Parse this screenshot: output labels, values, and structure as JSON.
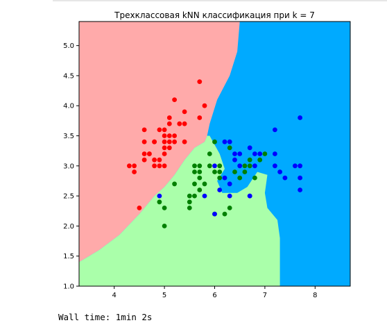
{
  "output": {
    "wall_time": "Wall time: 1min 2s"
  },
  "chart_data": {
    "type": "scatter",
    "title": "Трехклассовая kNN классификация при k = 7",
    "xlabel": "",
    "ylabel": "",
    "xlim": [
      3.3,
      8.7
    ],
    "ylim": [
      1.0,
      5.4
    ],
    "x_ticks": [
      "4",
      "5",
      "6",
      "7",
      "8"
    ],
    "y_ticks": [
      "1.0",
      "1.5",
      "2.0",
      "2.5",
      "3.0",
      "3.5",
      "4.0",
      "4.5",
      "5.0"
    ],
    "grid": false,
    "legend": "none",
    "background_colors": {
      "red_region": "#FFAAAA",
      "green_region": "#AAFFAA",
      "blue_region": "#00AAFF"
    },
    "regions": {
      "red_green_boundary": [
        [
          3.3,
          1.4
        ],
        [
          3.7,
          1.6
        ],
        [
          4.1,
          1.85
        ],
        [
          4.5,
          2.2
        ],
        [
          4.8,
          2.5
        ],
        [
          5.0,
          2.65
        ],
        [
          5.2,
          2.85
        ],
        [
          5.4,
          3.1
        ],
        [
          5.6,
          3.3
        ],
        [
          5.8,
          3.4
        ],
        [
          5.85,
          3.5
        ],
        [
          5.9,
          3.7
        ]
      ],
      "red_blue_boundary": [
        [
          5.9,
          3.7
        ],
        [
          6.05,
          4.1
        ],
        [
          6.3,
          4.5
        ],
        [
          6.45,
          4.9
        ],
        [
          6.5,
          5.4
        ]
      ],
      "green_blue_boundary": [
        [
          5.9,
          3.5
        ],
        [
          6.1,
          3.2
        ],
        [
          6.2,
          2.95
        ],
        [
          6.05,
          2.75
        ],
        [
          6.15,
          2.55
        ],
        [
          6.45,
          2.55
        ],
        [
          6.65,
          2.65
        ],
        [
          6.85,
          2.9
        ],
        [
          7.05,
          2.85
        ],
        [
          7.0,
          2.55
        ],
        [
          7.05,
          2.3
        ],
        [
          7.25,
          2.1
        ],
        [
          7.3,
          1.8
        ],
        [
          7.3,
          1.0
        ]
      ]
    },
    "series": [
      {
        "color": "#ff0000",
        "points": [
          [
            4.5,
            2.3
          ],
          [
            4.3,
            3.0
          ],
          [
            4.4,
            2.9
          ],
          [
            4.4,
            3.0
          ],
          [
            4.6,
            3.1
          ],
          [
            4.6,
            3.2
          ],
          [
            4.6,
            3.4
          ],
          [
            4.6,
            3.6
          ],
          [
            4.7,
            3.2
          ],
          [
            4.7,
            3.2
          ],
          [
            4.8,
            3.0
          ],
          [
            4.8,
            3.1
          ],
          [
            4.8,
            3.4
          ],
          [
            4.8,
            3.4
          ],
          [
            4.9,
            3.0
          ],
          [
            4.9,
            3.1
          ],
          [
            4.9,
            3.6
          ],
          [
            5.0,
            3.0
          ],
          [
            5.0,
            3.2
          ],
          [
            5.0,
            3.3
          ],
          [
            5.0,
            3.4
          ],
          [
            5.0,
            3.5
          ],
          [
            5.0,
            3.6
          ],
          [
            5.1,
            3.3
          ],
          [
            5.1,
            3.4
          ],
          [
            5.1,
            3.5
          ],
          [
            5.1,
            3.7
          ],
          [
            5.1,
            3.8
          ],
          [
            5.2,
            3.4
          ],
          [
            5.2,
            3.5
          ],
          [
            5.2,
            4.1
          ],
          [
            5.3,
            3.7
          ],
          [
            5.4,
            3.4
          ],
          [
            5.4,
            3.7
          ],
          [
            5.4,
            3.9
          ],
          [
            5.7,
            3.8
          ],
          [
            5.7,
            4.4
          ],
          [
            5.8,
            4.0
          ]
        ]
      },
      {
        "color": "#008000",
        "points": [
          [
            4.9,
            2.4
          ],
          [
            5.0,
            2.0
          ],
          [
            5.0,
            2.3
          ],
          [
            5.2,
            2.7
          ],
          [
            5.5,
            2.3
          ],
          [
            5.5,
            2.4
          ],
          [
            5.5,
            2.5
          ],
          [
            5.6,
            2.5
          ],
          [
            5.6,
            2.7
          ],
          [
            5.6,
            2.9
          ],
          [
            5.6,
            3.0
          ],
          [
            5.7,
            2.6
          ],
          [
            5.7,
            2.8
          ],
          [
            5.7,
            2.9
          ],
          [
            5.7,
            3.0
          ],
          [
            5.8,
            2.7
          ],
          [
            5.9,
            3.0
          ],
          [
            5.9,
            3.2
          ],
          [
            6.0,
            2.2
          ],
          [
            6.0,
            2.9
          ],
          [
            6.0,
            3.4
          ],
          [
            6.1,
            2.8
          ],
          [
            6.1,
            2.9
          ],
          [
            6.1,
            3.0
          ],
          [
            6.2,
            2.2
          ],
          [
            6.3,
            2.3
          ],
          [
            6.3,
            3.3
          ],
          [
            6.4,
            2.9
          ],
          [
            6.5,
            2.8
          ],
          [
            6.6,
            2.9
          ],
          [
            6.6,
            3.0
          ],
          [
            6.7,
            3.0
          ],
          [
            6.7,
            3.1
          ],
          [
            6.8,
            2.8
          ],
          [
            6.9,
            3.1
          ],
          [
            7.0,
            3.2
          ]
        ]
      },
      {
        "color": "#0000ff",
        "points": [
          [
            4.9,
            2.5
          ],
          [
            5.8,
            2.5
          ],
          [
            6.0,
            2.2
          ],
          [
            6.0,
            3.0
          ],
          [
            6.1,
            2.6
          ],
          [
            6.2,
            2.8
          ],
          [
            6.2,
            3.4
          ],
          [
            6.3,
            2.5
          ],
          [
            6.3,
            2.7
          ],
          [
            6.3,
            3.4
          ],
          [
            6.4,
            3.1
          ],
          [
            6.4,
            3.2
          ],
          [
            6.5,
            3.0
          ],
          [
            6.5,
            3.2
          ],
          [
            6.7,
            2.5
          ],
          [
            6.7,
            3.3
          ],
          [
            6.8,
            3.0
          ],
          [
            6.8,
            3.2
          ],
          [
            6.9,
            3.2
          ],
          [
            7.2,
            3.0
          ],
          [
            7.2,
            3.2
          ],
          [
            7.2,
            3.6
          ],
          [
            7.3,
            2.9
          ],
          [
            7.4,
            2.8
          ],
          [
            7.6,
            3.0
          ],
          [
            7.7,
            2.6
          ],
          [
            7.7,
            2.8
          ],
          [
            7.7,
            3.0
          ],
          [
            7.7,
            3.8
          ],
          [
            6.7,
            2.5
          ]
        ]
      }
    ]
  }
}
